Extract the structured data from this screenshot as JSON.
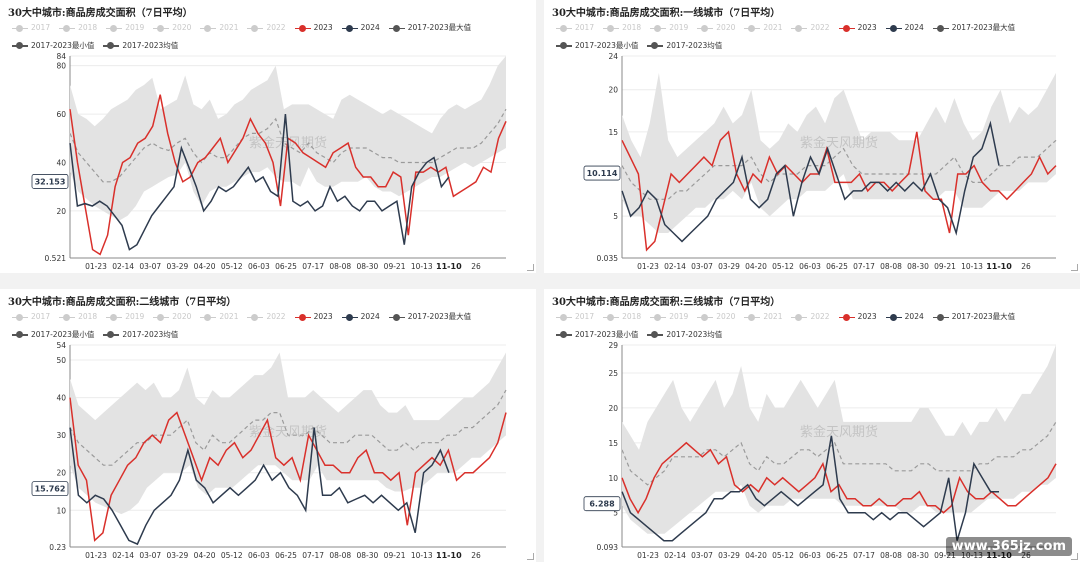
{
  "watermark_footer": "www.365jz.com",
  "colors": {
    "y2023": "#d9302b",
    "y2024": "#2e3b4e",
    "band": "#e3e3e3",
    "avg": "#9a9a9a",
    "grid": "#ececec",
    "off": "#cccccc"
  },
  "legend": [
    {
      "label": "2017",
      "color": "#cccccc",
      "off": true
    },
    {
      "label": "2018",
      "color": "#cccccc",
      "off": true
    },
    {
      "label": "2019",
      "color": "#cccccc",
      "off": true
    },
    {
      "label": "2020",
      "color": "#cccccc",
      "off": true
    },
    {
      "label": "2021",
      "color": "#cccccc",
      "off": true
    },
    {
      "label": "2022",
      "color": "#cccccc",
      "off": true
    },
    {
      "label": "2023",
      "color": "#d9302b",
      "off": false
    },
    {
      "label": "2024",
      "color": "#2e3b4e",
      "off": false
    },
    {
      "label": "2017-2023最大值",
      "color": "#555555",
      "off": false
    },
    {
      "label": "2017-2023最小值",
      "color": "#555555",
      "off": false
    },
    {
      "label": "2017-2023均值",
      "color": "#555555",
      "off": false
    }
  ],
  "x_tick_labels": [
    "01-23",
    "02-14",
    "03-07",
    "03-29",
    "04-20",
    "05-12",
    "06-03",
    "06-25",
    "07-17",
    "08-08",
    "08-30",
    "09-21",
    "10-13",
    "11-10",
    "26"
  ],
  "x_tick_bold": "11-10",
  "chart_data": [
    {
      "type": "line",
      "title": "30大中城市:商品房成交面积（7日平均）",
      "watermark": "紫金天风期货",
      "y_ticks": [
        "84",
        "80",
        "60",
        "40",
        "20",
        "0.521"
      ],
      "y_tick_values": [
        84,
        80,
        60,
        40,
        20,
        0.521
      ],
      "ylim": [
        0.521,
        84
      ],
      "current_value": "32.153",
      "current_numeric": 32.153,
      "series_2023": [
        62,
        40,
        22,
        4,
        2,
        10,
        30,
        40,
        42,
        48,
        50,
        55,
        68,
        52,
        40,
        32,
        34,
        40,
        42,
        46,
        50,
        40,
        45,
        50,
        58,
        52,
        48,
        40,
        22,
        50,
        48,
        44,
        42,
        40,
        38,
        44,
        46,
        48,
        38,
        34,
        34,
        30,
        30,
        36,
        34,
        10,
        36,
        36,
        38,
        36,
        38,
        26,
        28,
        30,
        32,
        38,
        36,
        50,
        57
      ],
      "series_2024": [
        48,
        22,
        23,
        22,
        24,
        22,
        18,
        14,
        4,
        6,
        12,
        18,
        22,
        26,
        30,
        46,
        38,
        30,
        20,
        24,
        30,
        28,
        30,
        34,
        38,
        32,
        34,
        28,
        26,
        60,
        24,
        22,
        24,
        20,
        22,
        30,
        24,
        26,
        22,
        20,
        24,
        24,
        20,
        22,
        24,
        6,
        30,
        36,
        40,
        42,
        30,
        34
      ],
      "band_max": [
        72,
        60,
        58,
        55,
        58,
        62,
        64,
        66,
        70,
        72,
        75,
        62,
        64,
        66,
        76,
        64,
        62,
        66,
        58,
        60,
        64,
        66,
        70,
        72,
        74,
        80,
        62,
        64,
        64,
        64,
        62,
        60,
        58,
        66,
        68,
        66,
        64,
        62,
        60,
        62,
        60,
        58,
        56,
        54,
        52,
        58,
        62,
        64,
        62,
        64,
        66,
        72,
        80,
        84
      ],
      "band_min": [
        36,
        28,
        25,
        22,
        20,
        18,
        16,
        18,
        22,
        28,
        30,
        32,
        34,
        35,
        40,
        28,
        22,
        28,
        30,
        30,
        32,
        34,
        36,
        36,
        38,
        34,
        32,
        32,
        30,
        38,
        32,
        30,
        30,
        32,
        32,
        32,
        34,
        30,
        28,
        28,
        26,
        28,
        30,
        32,
        34,
        34,
        36,
        38,
        40,
        38,
        40,
        42,
        44,
        46
      ],
      "avg": [
        52,
        44,
        40,
        36,
        32,
        32,
        34,
        38,
        42,
        46,
        48,
        46,
        45,
        48,
        50,
        44,
        40,
        44,
        42,
        42,
        46,
        50,
        52,
        52,
        54,
        58,
        48,
        46,
        44,
        48,
        44,
        42,
        40,
        44,
        46,
        46,
        46,
        44,
        42,
        42,
        40,
        40,
        40,
        40,
        40,
        42,
        44,
        46,
        46,
        46,
        48,
        52,
        56,
        62
      ]
    },
    {
      "type": "line",
      "title": "30大中城市:商品房成交面积:一线城市（7日平均）",
      "watermark": "紫金天风期货",
      "y_ticks": [
        "24",
        "20",
        "15",
        "10",
        "5",
        "0.035"
      ],
      "y_tick_values": [
        24,
        20,
        15,
        10,
        5,
        0.035
      ],
      "ylim": [
        0.035,
        24
      ],
      "current_value": "10.114",
      "current_numeric": 10.114,
      "series_2023": [
        14,
        12,
        10,
        1,
        2,
        6,
        10,
        9,
        10,
        11,
        12,
        11,
        14,
        15,
        10,
        8,
        10,
        9,
        12,
        10,
        11,
        10,
        9,
        10,
        10,
        13,
        9,
        9,
        9,
        10,
        8,
        9,
        9,
        8,
        9,
        10,
        15,
        8,
        7,
        7,
        3,
        10,
        10,
        11,
        9,
        8,
        8,
        7,
        8,
        9,
        10,
        12,
        10,
        11
      ],
      "series_2024": [
        8,
        5,
        6,
        8,
        7,
        4,
        3,
        2,
        3,
        4,
        5,
        7,
        8,
        9,
        12,
        7,
        6,
        7,
        10,
        11,
        5,
        9,
        12,
        10,
        13,
        10,
        7,
        8,
        8,
        9,
        9,
        8,
        9,
        8,
        9,
        8,
        10,
        7,
        6,
        3,
        8,
        12,
        13,
        16,
        11
      ],
      "band_max": [
        17,
        14,
        12,
        16,
        22,
        14,
        12,
        13,
        14,
        15,
        16,
        18,
        16,
        17,
        20,
        14,
        13,
        14,
        16,
        15,
        17,
        18,
        16,
        19,
        20,
        17,
        14,
        15,
        15,
        15,
        14,
        14,
        14,
        16,
        18,
        16,
        19,
        16,
        14,
        15,
        18,
        20,
        16,
        18,
        17,
        18,
        20,
        22
      ],
      "band_min": [
        7,
        5,
        5,
        4,
        3,
        3,
        4,
        5,
        6,
        6,
        7,
        7,
        8,
        7,
        9,
        6,
        5,
        6,
        7,
        7,
        8,
        8,
        8,
        9,
        10,
        7,
        7,
        7,
        7,
        7,
        7,
        7,
        7,
        7,
        7,
        8,
        8,
        6,
        6,
        6,
        7,
        8,
        8,
        8,
        9,
        9,
        9,
        10
      ],
      "avg": [
        11,
        9,
        8,
        7,
        7,
        7,
        8,
        8,
        9,
        10,
        11,
        11,
        11,
        11,
        12,
        10,
        9,
        10,
        10,
        10,
        11,
        11,
        11,
        12,
        13,
        11,
        10,
        10,
        10,
        10,
        10,
        10,
        10,
        10,
        10,
        11,
        12,
        10,
        9,
        9,
        10,
        11,
        11,
        12,
        12,
        12,
        13,
        14
      ]
    },
    {
      "type": "line",
      "title": "30大中城市:商品房成交面积:二线城市（7日平均）",
      "watermark": "紫金天风期货",
      "y_ticks": [
        "54",
        "50",
        "40",
        "30",
        "20",
        "10",
        "0.23"
      ],
      "y_tick_values": [
        54,
        50,
        40,
        30,
        20,
        10,
        0.23
      ],
      "ylim": [
        0.23,
        54
      ],
      "current_value": "15.762",
      "current_numeric": 15.762,
      "series_2023": [
        40,
        22,
        18,
        2,
        4,
        14,
        18,
        22,
        24,
        28,
        30,
        28,
        34,
        36,
        30,
        24,
        18,
        24,
        22,
        26,
        28,
        24,
        26,
        30,
        34,
        24,
        22,
        24,
        18,
        30,
        26,
        22,
        22,
        20,
        20,
        24,
        26,
        20,
        20,
        18,
        20,
        6,
        20,
        22,
        24,
        22,
        26,
        18,
        20,
        20,
        22,
        24,
        28,
        36
      ],
      "series_2024": [
        32,
        14,
        12,
        14,
        13,
        10,
        6,
        2,
        1,
        6,
        10,
        12,
        14,
        18,
        26,
        18,
        16,
        12,
        14,
        16,
        14,
        16,
        18,
        22,
        18,
        20,
        16,
        14,
        10,
        32,
        14,
        14,
        16,
        12,
        13,
        14,
        12,
        14,
        12,
        10,
        12,
        4,
        20,
        22,
        26,
        20
      ],
      "band_max": [
        45,
        38,
        36,
        34,
        36,
        38,
        40,
        42,
        44,
        42,
        44,
        40,
        40,
        42,
        48,
        40,
        38,
        42,
        40,
        40,
        42,
        44,
        46,
        46,
        48,
        52,
        40,
        40,
        40,
        42,
        40,
        38,
        36,
        38,
        40,
        42,
        42,
        38,
        36,
        36,
        38,
        34,
        34,
        34,
        34,
        36,
        38,
        40,
        40,
        42,
        44,
        48,
        52
      ],
      "band_min": [
        22,
        16,
        14,
        12,
        11,
        10,
        9,
        10,
        12,
        16,
        18,
        20,
        20,
        20,
        22,
        16,
        14,
        16,
        16,
        16,
        18,
        20,
        22,
        22,
        22,
        20,
        18,
        18,
        18,
        22,
        18,
        18,
        18,
        18,
        18,
        18,
        18,
        16,
        15,
        15,
        16,
        16,
        18,
        20,
        20,
        20,
        22,
        24,
        24,
        26,
        28,
        30
      ],
      "avg": [
        32,
        28,
        26,
        24,
        22,
        22,
        24,
        26,
        28,
        28,
        30,
        30,
        30,
        32,
        34,
        28,
        26,
        30,
        28,
        28,
        30,
        32,
        34,
        34,
        36,
        36,
        30,
        30,
        30,
        32,
        30,
        28,
        28,
        28,
        30,
        30,
        30,
        28,
        26,
        26,
        28,
        26,
        28,
        28,
        28,
        30,
        30,
        32,
        32,
        34,
        36,
        38,
        42
      ]
    },
    {
      "type": "line",
      "title": "30大中城市:商品房成交面积:三线城市（7日平均）",
      "watermark": "紫金天风期货",
      "y_ticks": [
        "29",
        "25",
        "20",
        "15",
        "10",
        "5",
        "0.093"
      ],
      "y_tick_values": [
        29,
        25,
        20,
        15,
        10,
        5,
        0.093
      ],
      "ylim": [
        0.093,
        29
      ],
      "current_value": "6.288",
      "current_numeric": 6.288,
      "series_2023": [
        10,
        7,
        5,
        7,
        10,
        12,
        13,
        14,
        15,
        14,
        13,
        14,
        12,
        13,
        9,
        8,
        9,
        8,
        10,
        9,
        10,
        9,
        8,
        9,
        10,
        12,
        8,
        9,
        7,
        7,
        6,
        6,
        7,
        6,
        6,
        7,
        7,
        8,
        6,
        6,
        5,
        6,
        10,
        8,
        7,
        7,
        8,
        7,
        6,
        6,
        7,
        8,
        9,
        10,
        12
      ],
      "series_2024": [
        8,
        5,
        4,
        3,
        2,
        1,
        1,
        2,
        3,
        4,
        5,
        7,
        7,
        8,
        8,
        9,
        7,
        6,
        7,
        8,
        7,
        6,
        7,
        8,
        9,
        16,
        7,
        5,
        5,
        5,
        4,
        5,
        4,
        5,
        5,
        4,
        3,
        4,
        5,
        10,
        1,
        5,
        12,
        10,
        8,
        8
      ],
      "band_max": [
        18,
        16,
        14,
        18,
        20,
        22,
        24,
        20,
        18,
        20,
        22,
        24,
        20,
        22,
        26,
        20,
        18,
        22,
        20,
        20,
        22,
        24,
        22,
        20,
        22,
        24,
        18,
        18,
        18,
        18,
        18,
        18,
        18,
        18,
        18,
        20,
        20,
        18,
        16,
        16,
        18,
        16,
        18,
        18,
        20,
        18,
        20,
        22,
        22,
        24,
        26,
        29
      ],
      "band_min": [
        6,
        4,
        3,
        2,
        2,
        2,
        3,
        4,
        5,
        6,
        7,
        8,
        8,
        8,
        9,
        6,
        5,
        6,
        6,
        6,
        7,
        7,
        7,
        7,
        7,
        7,
        6,
        6,
        6,
        6,
        6,
        6,
        6,
        5,
        5,
        6,
        6,
        5,
        5,
        5,
        5,
        5,
        6,
        7,
        7,
        7,
        7,
        8,
        8,
        9,
        9,
        10
      ],
      "avg": [
        14,
        11,
        10,
        9,
        10,
        11,
        13,
        13,
        13,
        13,
        14,
        14,
        13,
        14,
        15,
        12,
        11,
        13,
        12,
        12,
        13,
        14,
        14,
        13,
        14,
        15,
        12,
        12,
        12,
        12,
        12,
        12,
        11,
        11,
        11,
        12,
        12,
        11,
        11,
        11,
        11,
        11,
        12,
        12,
        13,
        13,
        13,
        14,
        14,
        15,
        16,
        18
      ]
    }
  ]
}
